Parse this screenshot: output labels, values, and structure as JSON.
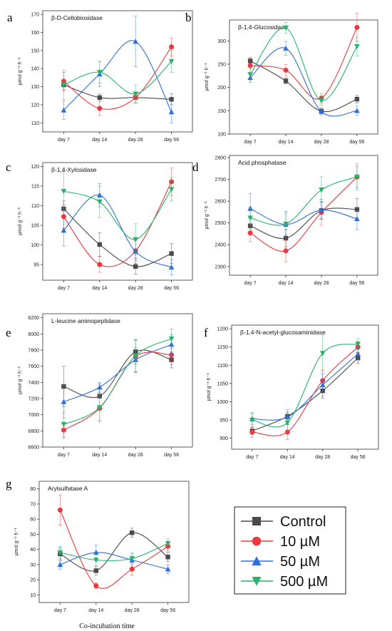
{
  "colors": {
    "Control": "#4a4a4a",
    "10 µM": "#e8393f",
    "50 µM": "#2f6fd6",
    "500 µM": "#27b46a"
  },
  "legend": {
    "entries": [
      "Control",
      "10 µM",
      "50 µM",
      "500 µM"
    ],
    "placement": "bottom-right"
  },
  "x_caption": "Co-incubation time",
  "chart_data": [
    {
      "type": "line",
      "letter": "a",
      "title": "β-D-Cellobiosidase",
      "ylabel": "µmol g⁻¹ h⁻¹",
      "categories": [
        "day 7",
        "day 14",
        "day 28",
        "day 56"
      ],
      "ylim": [
        105,
        172
      ],
      "yticks": [
        110,
        120,
        130,
        140,
        150,
        160,
        170
      ],
      "series": [
        {
          "name": "Control",
          "values": [
            131,
            124,
            124,
            123
          ],
          "errors": [
            3,
            2,
            3,
            3
          ]
        },
        {
          "name": "10 µM",
          "values": [
            133,
            118,
            124,
            152
          ],
          "errors": [
            5,
            4,
            3,
            5
          ]
        },
        {
          "name": "50 µM",
          "values": [
            117,
            137,
            155,
            116
          ],
          "errors": [
            5,
            7,
            14,
            6
          ]
        },
        {
          "name": "500 µM",
          "values": [
            131,
            138,
            126,
            144
          ],
          "errors": [
            8,
            6,
            5,
            6
          ]
        }
      ]
    },
    {
      "type": "line",
      "letter": "b",
      "title": "β-1,4-Glucosidase",
      "ylabel": "µmol g⁻¹ h⁻¹",
      "categories": [
        "day 7",
        "day 14",
        "day 28",
        "day 56"
      ],
      "ylim": [
        100,
        345
      ],
      "yticks": [
        100,
        150,
        200,
        250,
        300
      ],
      "series": [
        {
          "name": "Control",
          "values": [
            257,
            214,
            149,
            175
          ],
          "errors": [
            8,
            6,
            5,
            8
          ]
        },
        {
          "name": "10 µM",
          "values": [
            247,
            237,
            177,
            329
          ],
          "errors": [
            15,
            12,
            10,
            30
          ]
        },
        {
          "name": "50 µM",
          "values": [
            221,
            284,
            148,
            150
          ],
          "errors": [
            10,
            15,
            8,
            10
          ]
        },
        {
          "name": "500 µM",
          "values": [
            228,
            328,
            172,
            288
          ],
          "errors": [
            12,
            12,
            10,
            20
          ]
        }
      ]
    },
    {
      "type": "line",
      "letter": "c",
      "title": "β-1,4-Xylosidase",
      "ylabel": "µmol g⁻¹ h⁻¹",
      "categories": [
        "day 7",
        "day 14",
        "day 28",
        "day 56"
      ],
      "ylim": [
        91,
        121
      ],
      "yticks": [
        95,
        100,
        105,
        110,
        115,
        120
      ],
      "series": [
        {
          "name": "Control",
          "values": [
            109.2,
            100.1,
            94.5,
            97.8
          ],
          "errors": [
            2,
            3,
            2,
            2.5
          ]
        },
        {
          "name": "10 µM",
          "values": [
            107.2,
            95,
            98.5,
            116.1
          ],
          "errors": [
            3,
            2,
            2.5,
            3.5
          ]
        },
        {
          "name": "50 µM",
          "values": [
            103.7,
            112.7,
            98.3,
            94.3
          ],
          "errors": [
            4,
            3,
            3,
            2
          ]
        },
        {
          "name": "500 µM",
          "values": [
            113.7,
            111,
            101.4,
            114.2
          ],
          "errors": [
            5,
            4,
            4,
            3
          ]
        }
      ]
    },
    {
      "type": "line",
      "letter": "d",
      "title": "Acid phosphatase",
      "ylabel": "µmol g⁻¹ h⁻¹",
      "categories": [
        "day 7",
        "day 14",
        "day 28",
        "day 56"
      ],
      "ylim": [
        2260,
        2810
      ],
      "yticks": [
        2300,
        2400,
        2500,
        2600,
        2700,
        2800
      ],
      "series": [
        {
          "name": "Control",
          "values": [
            2487,
            2430,
            2557,
            2562
          ],
          "errors": [
            40,
            40,
            40,
            50
          ]
        },
        {
          "name": "10 µM",
          "values": [
            2454,
            2372,
            2549,
            2711
          ],
          "errors": [
            40,
            50,
            60,
            50
          ]
        },
        {
          "name": "50 µM",
          "values": [
            2566,
            2493,
            2559,
            2519
          ],
          "errors": [
            70,
            60,
            40,
            50
          ]
        },
        {
          "name": "500 µM",
          "values": [
            2523,
            2495,
            2652,
            2712
          ],
          "errors": [
            50,
            50,
            60,
            60
          ]
        }
      ]
    },
    {
      "type": "line",
      "letter": "e",
      "title": "L-leucine aminopeptidase",
      "ylabel": "µmol g⁻¹ h⁻¹",
      "categories": [
        "day 7",
        "day 14",
        "day 28",
        "day 56"
      ],
      "ylim": [
        6600,
        8250
      ],
      "yticks": [
        6600,
        6800,
        7000,
        7200,
        7400,
        7600,
        7800,
        8000,
        8200
      ],
      "series": [
        {
          "name": "Control",
          "values": [
            7350,
            7230,
            7780,
            7680
          ],
          "errors": [
            250,
            150,
            150,
            100
          ]
        },
        {
          "name": "10 µM",
          "values": [
            6810,
            7080,
            7720,
            7740
          ],
          "errors": [
            100,
            150,
            200,
            120
          ]
        },
        {
          "name": "50 µM",
          "values": [
            7160,
            7340,
            7680,
            7870
          ],
          "errors": [
            200,
            60,
            150,
            120
          ]
        },
        {
          "name": "500 µM",
          "values": [
            6880,
            7090,
            7730,
            7940
          ],
          "errors": [
            150,
            180,
            200,
            120
          ]
        }
      ]
    },
    {
      "type": "line",
      "letter": "f",
      "title": "β-1,4-N-acetyl-glucosaminidase",
      "ylabel": "µmol g⁻¹ h⁻¹",
      "categories": [
        "day 7",
        "day 14",
        "day 28",
        "day 56"
      ],
      "ylim": [
        870,
        1210
      ],
      "yticks": [
        900,
        950,
        1000,
        1050,
        1100,
        1150,
        1200
      ],
      "series": [
        {
          "name": "Control",
          "values": [
            920,
            960,
            1030,
            1120
          ],
          "errors": [
            10,
            12,
            20,
            15
          ]
        },
        {
          "name": "10 µM",
          "values": [
            917,
            917,
            1058,
            1150
          ],
          "errors": [
            15,
            20,
            30,
            15
          ]
        },
        {
          "name": "50 µM",
          "values": [
            953,
            958,
            1046,
            1131
          ],
          "errors": [
            15,
            20,
            30,
            15
          ]
        },
        {
          "name": "500 µM",
          "values": [
            950,
            943,
            1133,
            1158
          ],
          "errors": [
            20,
            25,
            50,
            15
          ]
        }
      ]
    },
    {
      "type": "line",
      "letter": "g",
      "title": "Arylsulfatase A",
      "ylabel": "µmol g⁻¹ h⁻¹",
      "categories": [
        "day 7",
        "day 14",
        "day 28",
        "day 56"
      ],
      "ylim": [
        5,
        85
      ],
      "yticks": [
        10,
        20,
        30,
        40,
        50,
        60,
        70,
        80
      ],
      "series": [
        {
          "name": "Control",
          "values": [
            37,
            26,
            51,
            35
          ],
          "errors": [
            4,
            3,
            3,
            3
          ]
        },
        {
          "name": "10 µM",
          "values": [
            66,
            16,
            27,
            42
          ],
          "errors": [
            10,
            2,
            4,
            3
          ]
        },
        {
          "name": "50 µM",
          "values": [
            30,
            38,
            33,
            27
          ],
          "errors": [
            3,
            5,
            4,
            3
          ]
        },
        {
          "name": "500 µM",
          "values": [
            38,
            33,
            34,
            44
          ],
          "errors": [
            4,
            4,
            4,
            3
          ]
        }
      ]
    }
  ]
}
